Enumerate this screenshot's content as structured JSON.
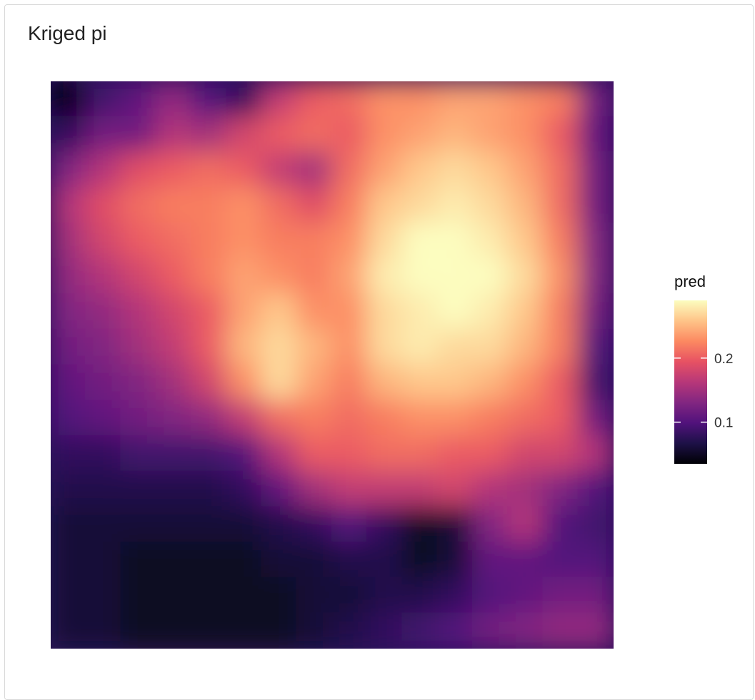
{
  "panel": {
    "title": "Kriged pi"
  },
  "chart_data": {
    "type": "heatmap",
    "title": "Kriged pi",
    "xlabel": "",
    "ylabel": "",
    "legend": {
      "title": "pred",
      "placement": "right",
      "ticks": [
        {
          "value": 0.2,
          "label": "0.2"
        },
        {
          "value": 0.1,
          "label": "0.1"
        }
      ],
      "range": [
        0.035,
        0.29
      ]
    },
    "colormap": "magma",
    "colors": [
      "#000004",
      "#1d1147",
      "#51127c",
      "#822681",
      "#b73779",
      "#e75263",
      "#fc8961",
      "#fec488",
      "#fcfdbf"
    ],
    "grid": false,
    "grid_shape": [
      16,
      16
    ],
    "values": [
      [
        0.04,
        0.09,
        0.11,
        0.14,
        0.1,
        0.08,
        0.17,
        0.2,
        0.21,
        0.23,
        0.23,
        0.24,
        0.24,
        0.23,
        0.22,
        0.12
      ],
      [
        0.08,
        0.12,
        0.12,
        0.16,
        0.15,
        0.18,
        0.2,
        0.21,
        0.2,
        0.23,
        0.24,
        0.25,
        0.24,
        0.23,
        0.2,
        0.11
      ],
      [
        0.13,
        0.16,
        0.19,
        0.2,
        0.21,
        0.2,
        0.17,
        0.15,
        0.21,
        0.24,
        0.26,
        0.27,
        0.26,
        0.24,
        0.21,
        0.12
      ],
      [
        0.16,
        0.19,
        0.21,
        0.22,
        0.22,
        0.23,
        0.21,
        0.19,
        0.22,
        0.26,
        0.27,
        0.28,
        0.27,
        0.25,
        0.21,
        0.12
      ],
      [
        0.15,
        0.18,
        0.2,
        0.21,
        0.22,
        0.23,
        0.22,
        0.22,
        0.23,
        0.27,
        0.29,
        0.29,
        0.28,
        0.26,
        0.22,
        0.13
      ],
      [
        0.14,
        0.16,
        0.18,
        0.2,
        0.22,
        0.24,
        0.23,
        0.22,
        0.24,
        0.28,
        0.29,
        0.29,
        0.29,
        0.27,
        0.23,
        0.13
      ],
      [
        0.13,
        0.14,
        0.16,
        0.18,
        0.2,
        0.24,
        0.26,
        0.23,
        0.23,
        0.27,
        0.28,
        0.29,
        0.28,
        0.26,
        0.22,
        0.12
      ],
      [
        0.12,
        0.13,
        0.15,
        0.17,
        0.2,
        0.25,
        0.27,
        0.25,
        0.23,
        0.27,
        0.28,
        0.27,
        0.27,
        0.25,
        0.22,
        0.1
      ],
      [
        0.11,
        0.12,
        0.13,
        0.15,
        0.18,
        0.23,
        0.27,
        0.24,
        0.22,
        0.25,
        0.26,
        0.26,
        0.25,
        0.23,
        0.2,
        0.09
      ],
      [
        0.1,
        0.11,
        0.12,
        0.13,
        0.14,
        0.17,
        0.21,
        0.22,
        0.21,
        0.22,
        0.23,
        0.23,
        0.22,
        0.21,
        0.2,
        0.12
      ],
      [
        0.08,
        0.08,
        0.09,
        0.09,
        0.09,
        0.1,
        0.16,
        0.2,
        0.2,
        0.21,
        0.21,
        0.2,
        0.2,
        0.18,
        0.18,
        0.16
      ],
      [
        0.07,
        0.07,
        0.07,
        0.07,
        0.07,
        0.08,
        0.11,
        0.15,
        0.17,
        0.17,
        0.17,
        0.18,
        0.16,
        0.15,
        0.13,
        0.1
      ],
      [
        0.06,
        0.06,
        0.06,
        0.06,
        0.06,
        0.06,
        0.07,
        0.08,
        0.1,
        0.08,
        0.05,
        0.06,
        0.13,
        0.16,
        0.1,
        0.09
      ],
      [
        0.06,
        0.06,
        0.05,
        0.05,
        0.05,
        0.05,
        0.06,
        0.06,
        0.07,
        0.07,
        0.05,
        0.06,
        0.11,
        0.11,
        0.1,
        0.1
      ],
      [
        0.06,
        0.06,
        0.05,
        0.05,
        0.05,
        0.05,
        0.05,
        0.06,
        0.06,
        0.07,
        0.07,
        0.08,
        0.1,
        0.11,
        0.12,
        0.12
      ],
      [
        0.06,
        0.06,
        0.05,
        0.05,
        0.05,
        0.05,
        0.05,
        0.06,
        0.07,
        0.08,
        0.09,
        0.1,
        0.12,
        0.13,
        0.14,
        0.14
      ]
    ]
  }
}
